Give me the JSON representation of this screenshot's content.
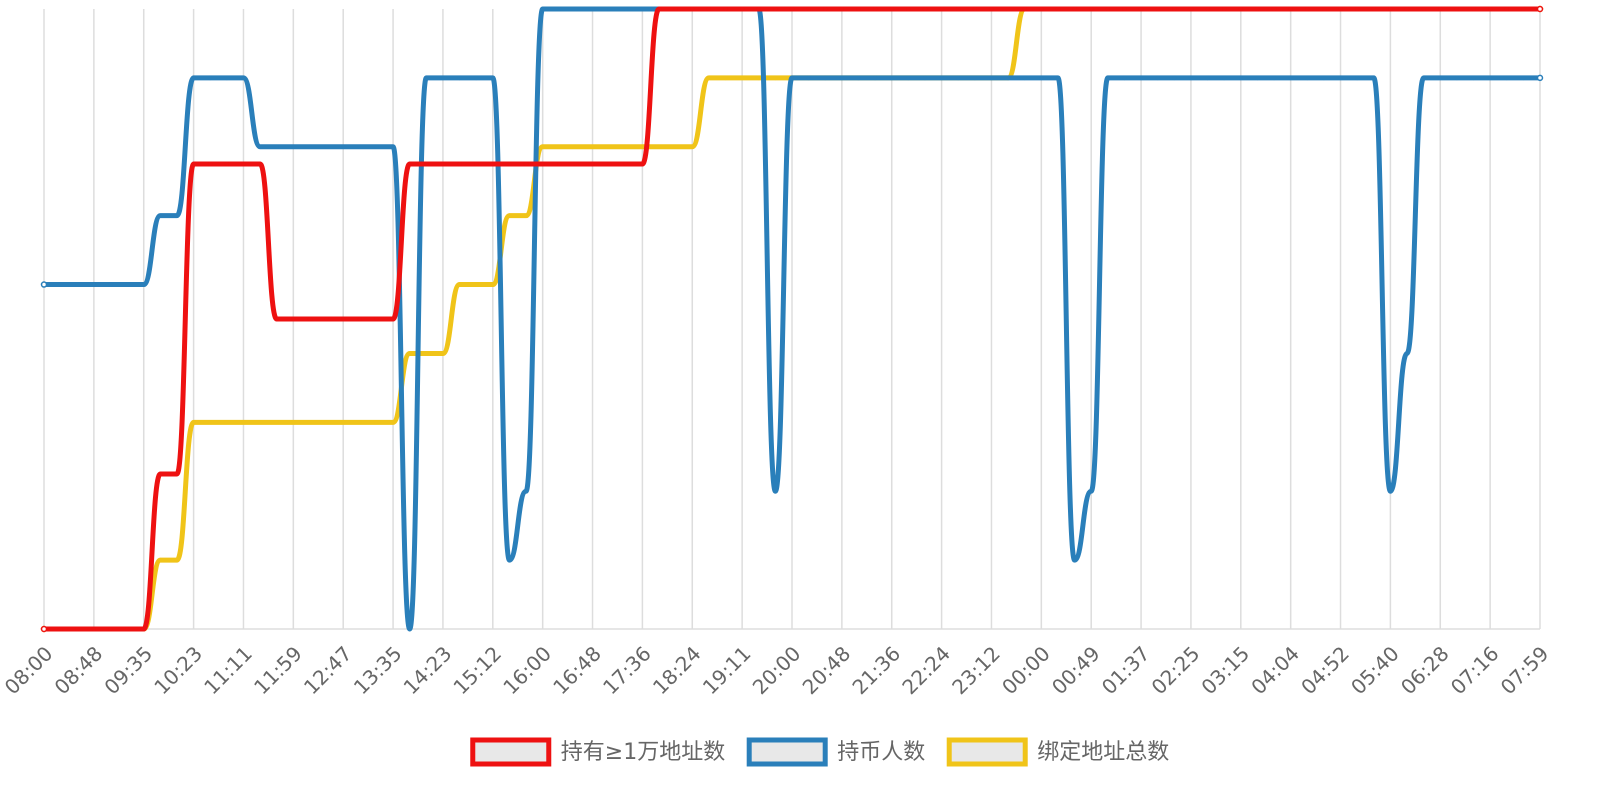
{
  "chart_data": {
    "type": "line",
    "categories": [
      "08:00",
      null,
      null,
      "08:48",
      null,
      null,
      "09:35",
      null,
      null,
      "10:23",
      null,
      null,
      "11:11",
      null,
      null,
      "11:59",
      null,
      null,
      "12:47",
      null,
      null,
      "13:35",
      null,
      null,
      "14:23",
      null,
      null,
      "15:12",
      null,
      null,
      "16:00",
      null,
      null,
      "16:48",
      null,
      null,
      "17:36",
      null,
      null,
      "18:24",
      null,
      null,
      "19:11",
      null,
      null,
      "20:00",
      null,
      null,
      "20:48",
      null,
      null,
      "21:36",
      null,
      null,
      "22:24",
      null,
      null,
      "23:12",
      null,
      null,
      "00:00",
      null,
      null,
      "00:49",
      null,
      null,
      "01:37",
      null,
      null,
      "02:25",
      null,
      null,
      "03:15",
      null,
      null,
      "04:04",
      null,
      null,
      "04:52",
      null,
      null,
      "05:40",
      null,
      null,
      "06:28",
      null,
      null,
      "07:16",
      null,
      null,
      "07:59"
    ],
    "series": [
      {
        "name": "持有≥1万地址数",
        "color": "#ee1111",
        "values": [
          0,
          0,
          0,
          0,
          0,
          0,
          0,
          2.25,
          2.25,
          6.75,
          6.75,
          6.75,
          6.75,
          6.75,
          4.5,
          4.5,
          4.5,
          4.5,
          4.5,
          4.5,
          4.5,
          4.5,
          6.75,
          6.75,
          6.75,
          6.75,
          6.75,
          6.75,
          6.75,
          6.75,
          6.75,
          6.75,
          6.75,
          6.75,
          6.75,
          6.75,
          6.75,
          9,
          9,
          9,
          9,
          9,
          9,
          9,
          9,
          9,
          9,
          9,
          9,
          9,
          9,
          9,
          9,
          9,
          9,
          9,
          9,
          9,
          9,
          9,
          9,
          9,
          9,
          9,
          9,
          9,
          9,
          9,
          9,
          9,
          9,
          9,
          9,
          9,
          9,
          9,
          9,
          9,
          9,
          9,
          9,
          9,
          9,
          9,
          9,
          9,
          9,
          9,
          9,
          9,
          9
        ]
      },
      {
        "name": "持币人数",
        "color": "#2a7fba",
        "values": [
          5,
          5,
          5,
          5,
          5,
          5,
          5,
          6,
          6,
          8,
          8,
          8,
          8,
          7,
          7,
          7,
          7,
          7,
          7,
          7,
          7,
          7,
          0,
          8,
          8,
          8,
          8,
          8,
          1,
          2,
          9,
          9,
          9,
          9,
          9,
          9,
          9,
          9,
          9,
          9,
          9,
          9,
          9,
          9,
          2,
          8,
          8,
          8,
          8,
          8,
          8,
          8,
          8,
          8,
          8,
          8,
          8,
          8,
          8,
          8,
          8,
          8,
          1,
          2,
          8,
          8,
          8,
          8,
          8,
          8,
          8,
          8,
          8,
          8,
          8,
          8,
          8,
          8,
          8,
          8,
          8,
          2,
          4,
          8,
          8,
          8,
          8,
          8,
          8,
          8,
          8
        ]
      },
      {
        "name": "绑定地址总数",
        "color": "#f0c419",
        "values": [
          0,
          0,
          0,
          0,
          0,
          0,
          0,
          1,
          1,
          3,
          3,
          3,
          3,
          3,
          3,
          3,
          3,
          3,
          3,
          3,
          3,
          3,
          4,
          4,
          4,
          5,
          5,
          5,
          6,
          6,
          7,
          7,
          7,
          7,
          7,
          7,
          7,
          7,
          7,
          7,
          8,
          8,
          8,
          8,
          8,
          8,
          8,
          8,
          8,
          8,
          8,
          8,
          8,
          8,
          8,
          8,
          8,
          8,
          8,
          9,
          9,
          9,
          9,
          9,
          9,
          9,
          9,
          9,
          9,
          9,
          9,
          9,
          9,
          9,
          9,
          9,
          9,
          9,
          9,
          9,
          9,
          9,
          9,
          9,
          9,
          9,
          9,
          9,
          9,
          9,
          9
        ]
      }
    ],
    "ylim": [
      0,
      9
    ],
    "grid": true
  }
}
